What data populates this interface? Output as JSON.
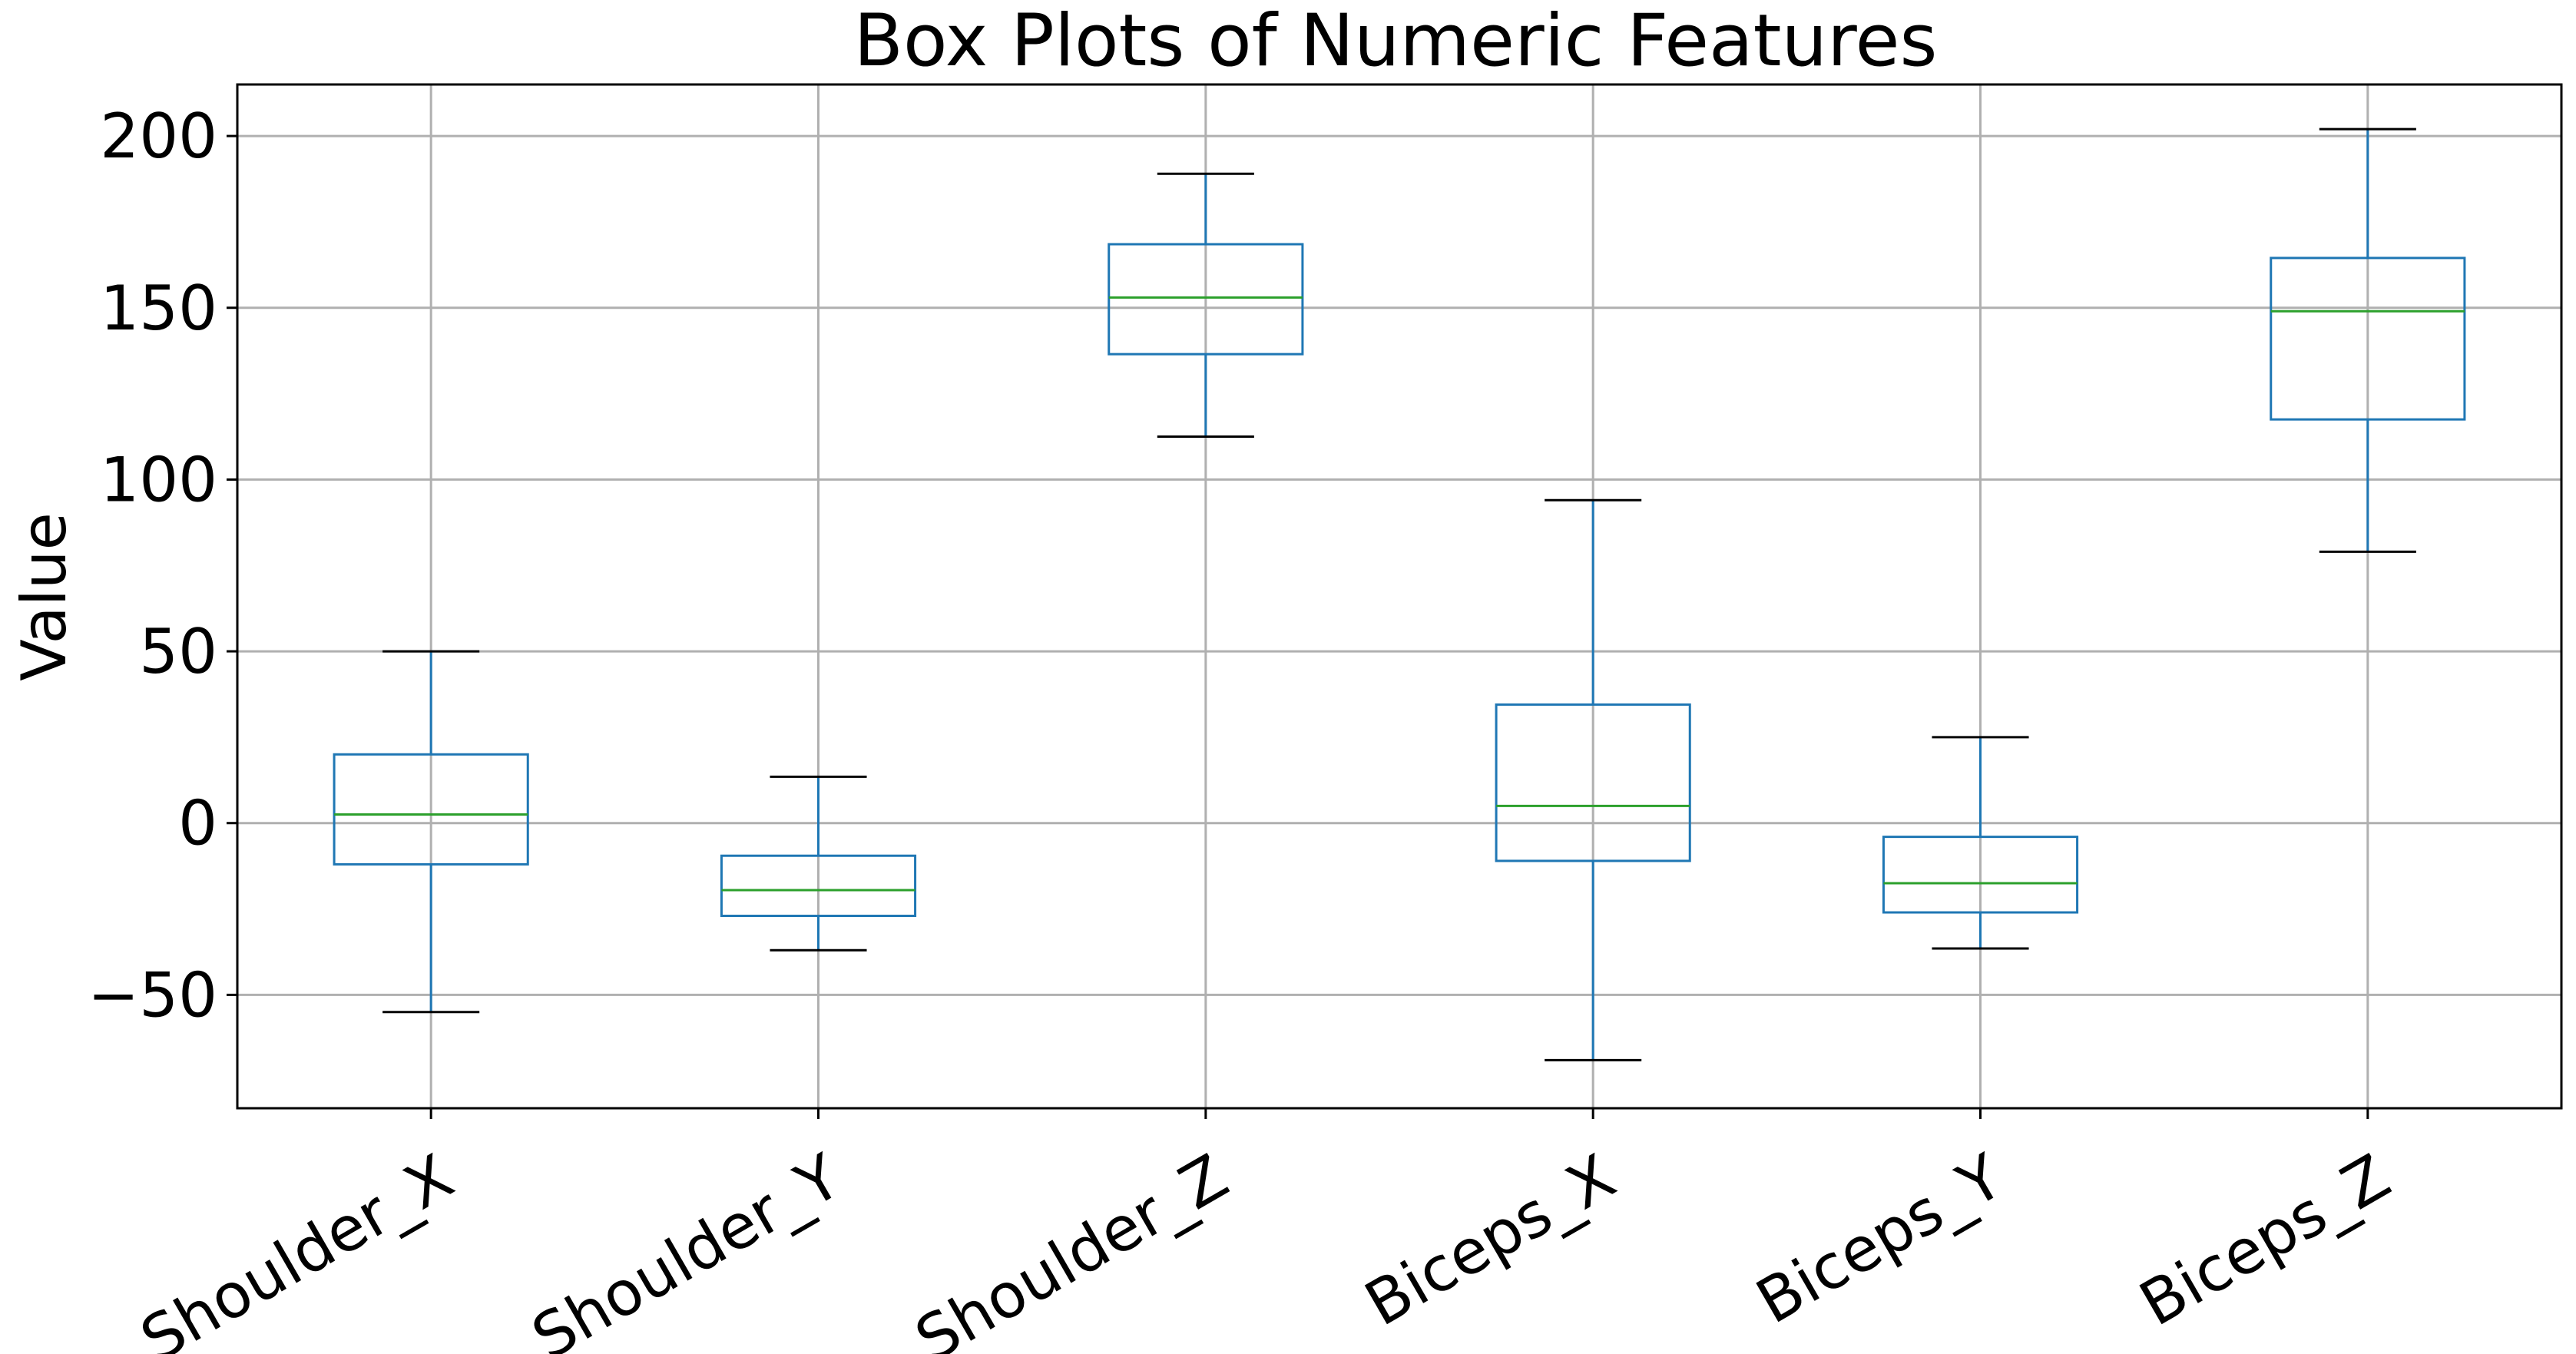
{
  "chart_data": {
    "type": "box",
    "title": "Box Plots of Numeric Features",
    "xlabel": "",
    "ylabel": "Value",
    "ylim": [
      -83,
      215
    ],
    "yticks": [
      -50,
      0,
      50,
      100,
      150,
      200
    ],
    "ytick_labels": [
      "−50",
      "0",
      "50",
      "100",
      "150",
      "200"
    ],
    "grid": true,
    "categories": [
      "Shoulder_X",
      "Shoulder_Y",
      "Shoulder_Z",
      "Biceps_X",
      "Biceps_Y",
      "Biceps_Z"
    ],
    "boxes": [
      {
        "name": "Shoulder_X",
        "whislo": -55,
        "q1": -12,
        "med": 2.5,
        "q3": 20,
        "whishi": 50
      },
      {
        "name": "Shoulder_Y",
        "whislo": -37,
        "q1": -27,
        "med": -19.5,
        "q3": -9.5,
        "whishi": 13.5
      },
      {
        "name": "Shoulder_Z",
        "whislo": 112.5,
        "q1": 136.5,
        "med": 153,
        "q3": 168.5,
        "whishi": 189
      },
      {
        "name": "Biceps_X",
        "whislo": -69,
        "q1": -11,
        "med": 5,
        "q3": 34.5,
        "whishi": 94
      },
      {
        "name": "Biceps_Y",
        "whislo": -36.5,
        "q1": -26,
        "med": -17.5,
        "q3": -4,
        "whishi": 25
      },
      {
        "name": "Biceps_Z",
        "whislo": 79,
        "q1": 117.5,
        "med": 149,
        "q3": 164.5,
        "whishi": 202
      }
    ],
    "colors": {
      "box": "#1f77b4",
      "median": "#2ca02c",
      "cap": "#000000",
      "grid": "#b0b0b0",
      "frame": "#000000"
    }
  }
}
